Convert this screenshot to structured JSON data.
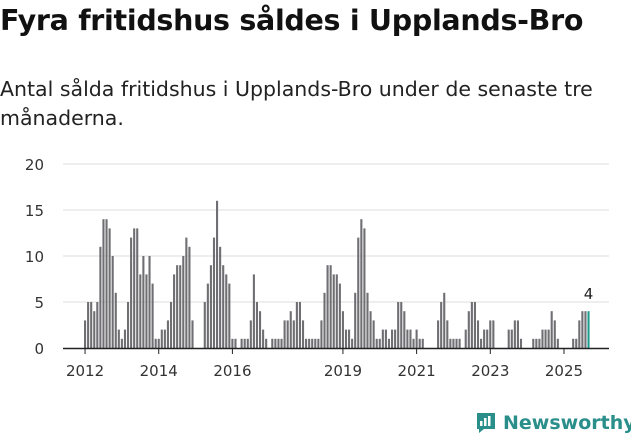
{
  "title": "Fyra fritidshus såldes i Upplands-Bro",
  "subtitle": "Antal sålda fritidshus i Upplands-Bro under de senaste tre månaderna.",
  "brand": {
    "name": "Newsworthy",
    "icon": "newsworthy-logo-icon",
    "color": "#2a8f8a"
  },
  "chart_data": {
    "type": "bar",
    "title": "",
    "xlabel": "",
    "ylabel": "",
    "ylim": [
      0,
      20
    ],
    "yticks": [
      0,
      5,
      10,
      15,
      20
    ],
    "xtick_labels": [
      "2012",
      "2014",
      "2016",
      "2019",
      "2021",
      "2023",
      "2025"
    ],
    "xtick_months": [
      0,
      24,
      48,
      84,
      108,
      132,
      156
    ],
    "start": "2012-01",
    "highlight_label": "4",
    "colors": {
      "bar": "#6e6e73",
      "highlight": "#1f9a8f",
      "grid": "#dddddd",
      "axis": "#222222"
    },
    "values": [
      3,
      5,
      5,
      4,
      5,
      11,
      14,
      14,
      13,
      10,
      6,
      2,
      1,
      2,
      5,
      12,
      13,
      13,
      8,
      10,
      8,
      10,
      7,
      1,
      1,
      2,
      2,
      3,
      5,
      8,
      9,
      9,
      10,
      12,
      11,
      3,
      0,
      0,
      0,
      5,
      7,
      9,
      12,
      16,
      11,
      9,
      8,
      7,
      1,
      1,
      0,
      1,
      1,
      1,
      3,
      8,
      5,
      4,
      2,
      1,
      0,
      1,
      1,
      1,
      1,
      3,
      3,
      4,
      3,
      5,
      5,
      3,
      1,
      1,
      1,
      1,
      1,
      3,
      6,
      9,
      9,
      8,
      8,
      7,
      4,
      2,
      2,
      1,
      6,
      12,
      14,
      13,
      6,
      4,
      3,
      1,
      1,
      2,
      2,
      1,
      2,
      2,
      5,
      5,
      4,
      2,
      2,
      1,
      2,
      1,
      1,
      0,
      0,
      0,
      0,
      3,
      5,
      6,
      3,
      1,
      1,
      1,
      1,
      0,
      2,
      4,
      5,
      5,
      3,
      1,
      2,
      2,
      3,
      3,
      0,
      0,
      0,
      0,
      2,
      2,
      3,
      3,
      1,
      0,
      0,
      0,
      1,
      1,
      1,
      2,
      2,
      2,
      4,
      3,
      1,
      0,
      0,
      0,
      0,
      1,
      1,
      3,
      4,
      4,
      4
    ]
  }
}
